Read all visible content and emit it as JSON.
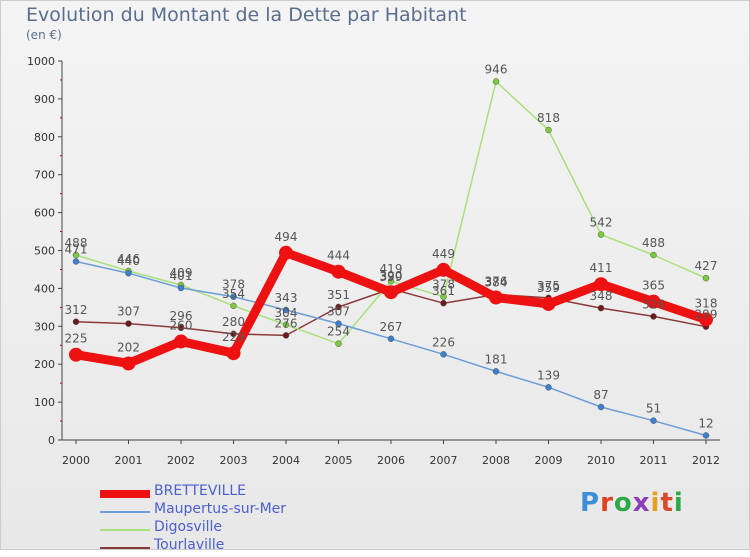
{
  "header": {
    "title": "Evolution du Montant de la Dette par Habitant",
    "subtitle": "(en €)"
  },
  "logo": {
    "text": "Proxiti",
    "letter_colors": [
      "#3a8fd8",
      "#e04020",
      "#2fa84a",
      "#8a3fb8",
      "#e8a020",
      "#d94a2a",
      "#2fa84a"
    ]
  },
  "chart_data": {
    "type": "line",
    "title": "Evolution du Montant de la Dette par Habitant",
    "subtitle": "(en €)",
    "xlabel": "",
    "ylabel": "",
    "ylim": [
      0,
      1000
    ],
    "yticks": [
      0,
      100,
      200,
      300,
      400,
      500,
      600,
      700,
      800,
      900,
      1000
    ],
    "grid": false,
    "legend_position": "bottom-left",
    "x": [
      "2000",
      "2001",
      "2002",
      "2003",
      "2004",
      "2005",
      "2006",
      "2007",
      "2008",
      "2009",
      "2010",
      "2011",
      "2012"
    ],
    "series": [
      {
        "name": "BRETTEVILLE",
        "color": "#ee1111",
        "point_color": "#ee1111",
        "values": [
          225,
          202,
          260,
          229,
          494,
          444,
          390,
          449,
          376,
          359,
          411,
          365,
          318
        ],
        "labels": [
          "225",
          "202",
          "260",
          "229",
          "494",
          "444",
          "390",
          "449",
          "376",
          "359",
          "411",
          "365",
          "318"
        ]
      },
      {
        "name": "Maupertus-sur-Mer",
        "color": "#6b9ed6",
        "point_color": "#3d7fd0",
        "values": [
          471,
          440,
          401,
          378,
          343,
          307,
          267,
          226,
          181,
          139,
          87,
          51,
          12
        ],
        "labels": [
          "471",
          "440",
          "401",
          "378",
          "343",
          "307",
          "267",
          "226",
          "181",
          "139",
          "87",
          "51",
          "12"
        ]
      },
      {
        "name": "Digosville",
        "color": "#a8e07a",
        "point_color": "#7ccb3c",
        "values": [
          488,
          446,
          409,
          354,
          304,
          254,
          419,
          378,
          946,
          818,
          542,
          488,
          427
        ],
        "labels": [
          "488",
          "446",
          "409",
          "354",
          "304",
          "254",
          "419",
          "378",
          "946",
          "818",
          "542",
          "488",
          "427"
        ]
      },
      {
        "name": "Tourlaville",
        "color": "#8b3a3a",
        "point_color": "#6b1a1a",
        "values": [
          312,
          307,
          296,
          280,
          276,
          351,
          399,
          361,
          384,
          375,
          348,
          326,
          299
        ],
        "labels": [
          "312",
          "307",
          "296",
          "280",
          "276",
          "351",
          "399",
          "361",
          "384",
          "375",
          "348",
          "326",
          "299"
        ]
      }
    ]
  }
}
